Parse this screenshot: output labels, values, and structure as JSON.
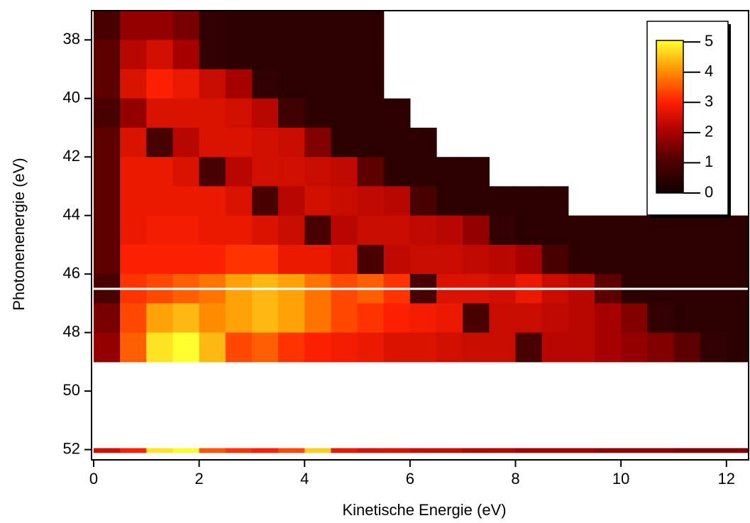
{
  "chart_data": {
    "type": "heatmap",
    "xlabel": "Kinetische Energie (eV)",
    "ylabel": "Photonenenergie (eV)",
    "xbins": [
      0,
      0.5,
      1,
      1.5,
      2,
      2.5,
      3,
      3.5,
      4,
      4.5,
      5,
      5.5,
      6,
      6.5,
      7,
      7.5,
      8,
      8.5,
      9,
      9.5,
      10,
      10.5,
      11,
      11.5,
      12,
      12.5
    ],
    "ybins": [
      37,
      38,
      39,
      40,
      41,
      42,
      43,
      44,
      45,
      46,
      47,
      48,
      49,
      51.95,
      52.1
    ],
    "z": [
      [
        1.0,
        1.8,
        1.8,
        1.5,
        0.6,
        0.5,
        0.5,
        0.5,
        0.5,
        0.5,
        0.5,
        null,
        null,
        null,
        null,
        null,
        null,
        null,
        null,
        null,
        null,
        null,
        null,
        null,
        null
      ],
      [
        1.2,
        2.2,
        2.5,
        2.0,
        0.6,
        0.5,
        0.5,
        0.5,
        0.5,
        0.5,
        0.5,
        null,
        null,
        null,
        null,
        null,
        null,
        null,
        null,
        null,
        null,
        null,
        null,
        null,
        null
      ],
      [
        1.2,
        2.6,
        3.0,
        2.8,
        2.4,
        2.0,
        0.6,
        0.5,
        0.5,
        0.5,
        0.5,
        null,
        null,
        null,
        null,
        null,
        null,
        null,
        null,
        null,
        null,
        null,
        null,
        null,
        null
      ],
      [
        1.0,
        1.8,
        2.6,
        2.6,
        2.6,
        2.5,
        2.2,
        0.8,
        0.5,
        0.5,
        0.5,
        0.5,
        null,
        null,
        null,
        null,
        null,
        null,
        null,
        null,
        null,
        null,
        null,
        null,
        null
      ],
      [
        1.2,
        2.6,
        1.0,
        2.2,
        2.6,
        2.6,
        2.5,
        2.4,
        1.6,
        0.5,
        0.5,
        0.5,
        0.5,
        null,
        null,
        null,
        null,
        null,
        null,
        null,
        null,
        null,
        null,
        null,
        null
      ],
      [
        1.2,
        2.8,
        2.8,
        2.6,
        1.0,
        2.2,
        2.5,
        2.5,
        2.4,
        2.3,
        1.2,
        0.5,
        0.5,
        0.5,
        0.5,
        null,
        null,
        null,
        null,
        null,
        null,
        null,
        null,
        null,
        null
      ],
      [
        1.2,
        2.8,
        2.8,
        2.8,
        2.8,
        2.6,
        1.0,
        2.2,
        2.5,
        2.4,
        2.3,
        2.2,
        1.0,
        0.5,
        0.5,
        0.5,
        0.5,
        0.5,
        null,
        null,
        null,
        null,
        null,
        null,
        null
      ],
      [
        1.2,
        2.8,
        2.9,
        2.9,
        2.8,
        2.8,
        2.6,
        2.4,
        1.0,
        2.2,
        2.4,
        2.4,
        2.3,
        2.2,
        1.8,
        0.6,
        0.5,
        0.5,
        0.5,
        0.5,
        0.5,
        0.5,
        0.5,
        0.5,
        0.5
      ],
      [
        1.2,
        3.0,
        3.0,
        3.0,
        3.0,
        3.2,
        3.2,
        2.8,
        2.8,
        2.6,
        1.0,
        2.3,
        2.4,
        2.4,
        2.3,
        2.2,
        2.0,
        1.0,
        0.5,
        0.5,
        0.5,
        0.5,
        0.5,
        0.5,
        0.5
      ],
      [
        1.0,
        3.2,
        3.4,
        3.6,
        3.8,
        4.2,
        4.4,
        4.2,
        3.8,
        3.4,
        3.6,
        3.2,
        1.0,
        2.6,
        2.6,
        2.5,
        2.8,
        2.4,
        2.2,
        1.2,
        0.5,
        0.5,
        0.5,
        0.5,
        0.5
      ],
      [
        1.5,
        3.4,
        4.2,
        4.4,
        4.0,
        4.2,
        4.4,
        4.2,
        3.8,
        3.4,
        3.2,
        3.0,
        2.9,
        2.8,
        1.0,
        2.4,
        2.4,
        2.3,
        2.2,
        2.0,
        1.6,
        0.6,
        0.5,
        0.5,
        0.5
      ],
      [
        1.8,
        3.6,
        4.8,
        5.2,
        4.4,
        3.4,
        3.6,
        3.2,
        3.0,
        2.9,
        2.8,
        2.6,
        2.6,
        2.5,
        2.4,
        2.4,
        1.0,
        2.2,
        2.2,
        2.0,
        1.8,
        1.6,
        1.2,
        0.6,
        0.5
      ],
      [
        null,
        null,
        null,
        null,
        null,
        null,
        null,
        null,
        null,
        null,
        null,
        null,
        null,
        null,
        null,
        null,
        null,
        null,
        null,
        null,
        null,
        null,
        null,
        null,
        null
      ],
      [
        2.5,
        3.0,
        4.8,
        5.0,
        3.5,
        3.2,
        3.0,
        3.4,
        4.6,
        2.8,
        2.6,
        2.6,
        2.4,
        2.4,
        2.2,
        2.2,
        2.0,
        2.0,
        2.0,
        1.8,
        1.8,
        1.8,
        1.6,
        1.6,
        1.6
      ]
    ],
    "xlim": [
      -0.04,
      12.42
    ],
    "ylim": [
      52.35,
      37
    ],
    "xticks": [
      0,
      2,
      4,
      6,
      8,
      10,
      12
    ],
    "yticks": [
      38,
      40,
      42,
      44,
      46,
      48,
      50,
      52
    ],
    "zlim": [
      0,
      5.05
    ],
    "zticks": [
      0,
      1,
      2,
      3,
      4,
      5
    ],
    "colorscale": [
      "#100000",
      "#4a0000",
      "#a80000",
      "#ff2000",
      "#ff9000",
      "#ffff30"
    ]
  }
}
